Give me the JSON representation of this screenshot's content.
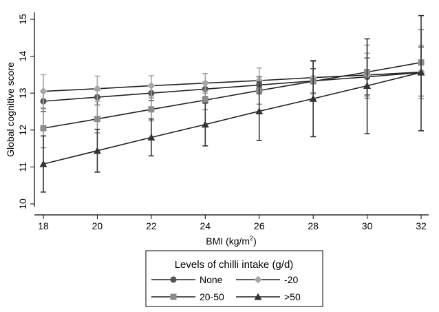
{
  "chart_data": {
    "type": "line",
    "xlabel": "BMI (kg/m",
    "xlabel_sup": "2",
    "xlabel_close": ")",
    "ylabel": "Global cognitive score",
    "xlim": [
      18,
      32
    ],
    "ylim": [
      10,
      15
    ],
    "xticks": [
      "18",
      "20",
      "22",
      "24",
      "26",
      "28",
      "30",
      "32"
    ],
    "yticks": [
      "10",
      "11",
      "12",
      "13",
      "14",
      "15"
    ],
    "grid": false,
    "legend_position": "bottom",
    "legend_title": "Levels of chilli intake (g/d)",
    "x": [
      18,
      20,
      22,
      24,
      26,
      28,
      30,
      32
    ],
    "series": [
      {
        "name": "None",
        "marker": "circle",
        "color": "#555555",
        "values": [
          12.78,
          12.89,
          13.0,
          13.11,
          13.22,
          13.33,
          13.44,
          13.56
        ],
        "ci_low": [
          12.5,
          12.68,
          12.8,
          12.9,
          12.98,
          13.0,
          12.95,
          12.85
        ],
        "ci_high": [
          13.05,
          13.08,
          13.18,
          13.3,
          13.45,
          13.66,
          13.95,
          14.25
        ]
      },
      {
        "name": "-20",
        "marker": "diamond",
        "color": "#a6a6a6",
        "values": [
          13.05,
          13.12,
          13.2,
          13.27,
          13.34,
          13.42,
          13.49,
          13.57
        ],
        "ci_low": [
          12.6,
          12.78,
          12.92,
          13.0,
          13.0,
          12.98,
          12.9,
          12.85
        ],
        "ci_high": [
          13.5,
          13.46,
          13.47,
          13.53,
          13.68,
          13.86,
          14.08,
          14.3
        ]
      },
      {
        "name": "20-50",
        "marker": "square",
        "color": "#8c8c8c",
        "values": [
          12.05,
          12.3,
          12.56,
          12.81,
          13.07,
          13.32,
          13.57,
          13.83
        ],
        "ci_low": [
          11.52,
          11.92,
          12.25,
          12.55,
          12.7,
          12.78,
          12.85,
          12.92
        ],
        "ci_high": [
          12.58,
          12.68,
          12.87,
          13.07,
          13.44,
          13.86,
          14.3,
          14.72
        ]
      },
      {
        "name": ">50",
        "marker": "triangle",
        "color": "#333333",
        "values": [
          11.08,
          11.44,
          11.8,
          12.15,
          12.51,
          12.85,
          13.2,
          13.56
        ],
        "ci_low": [
          10.32,
          10.86,
          11.3,
          11.57,
          11.72,
          11.82,
          11.9,
          11.98
        ],
        "ci_high": [
          11.84,
          12.02,
          12.3,
          12.73,
          13.3,
          13.88,
          14.47,
          15.1
        ]
      }
    ]
  }
}
